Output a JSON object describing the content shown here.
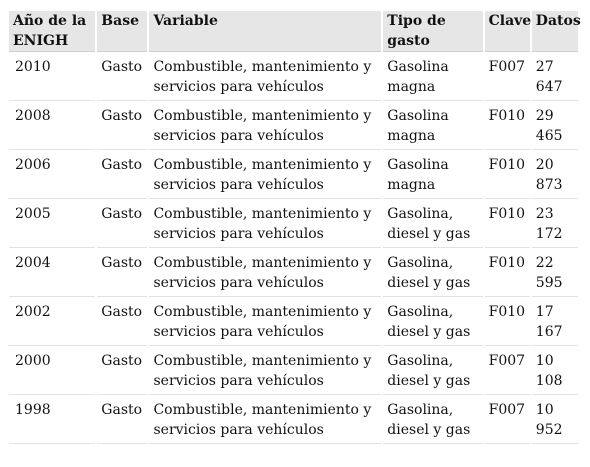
{
  "table": {
    "headers": [
      "Año de la ENIGH",
      "Base",
      "Variable",
      "Tipo de gasto",
      "Clave",
      "Datos"
    ],
    "rows": [
      {
        "year": "2010",
        "base": "Gasto",
        "variable": "Combustible, mantenimiento y servicios para vehículos",
        "tipo": "Gasolina magna",
        "clave": "F007",
        "datos": "27 647"
      },
      {
        "year": "2008",
        "base": "Gasto",
        "variable": "Combustible, mantenimiento y servicios para vehículos",
        "tipo": "Gasolina magna",
        "clave": "F010",
        "datos": "29 465"
      },
      {
        "year": "2006",
        "base": "Gasto",
        "variable": "Combustible, mantenimiento y servicios para vehículos",
        "tipo": "Gasolina magna",
        "clave": "F010",
        "datos": "20 873"
      },
      {
        "year": "2005",
        "base": "Gasto",
        "variable": "Combustible, mantenimiento y servicios para vehículos",
        "tipo": "Gasolina, diesel y gas",
        "clave": "F010",
        "datos": "23 172"
      },
      {
        "year": "2004",
        "base": "Gasto",
        "variable": "Combustible, mantenimiento y servicios para vehículos",
        "tipo": "Gasolina, diesel y gas",
        "clave": "F010",
        "datos": "22 595"
      },
      {
        "year": "2002",
        "base": "Gasto",
        "variable": "Combustible, mantenimiento y servicios para vehículos",
        "tipo": "Gasolina, diesel y gas",
        "clave": "F010",
        "datos": "17 167"
      },
      {
        "year": "2000",
        "base": "Gasto",
        "variable": "Combustible, mantenimiento y servicios para vehículos",
        "tipo": "Gasolina, diesel y gas",
        "clave": "F007",
        "datos": "10 108"
      },
      {
        "year": "1998",
        "base": "Gasto",
        "variable": "Combustible, mantenimiento y servicios para vehículos",
        "tipo": "Gasolina, diesel y gas",
        "clave": "F007",
        "datos": "10 952"
      }
    ]
  }
}
